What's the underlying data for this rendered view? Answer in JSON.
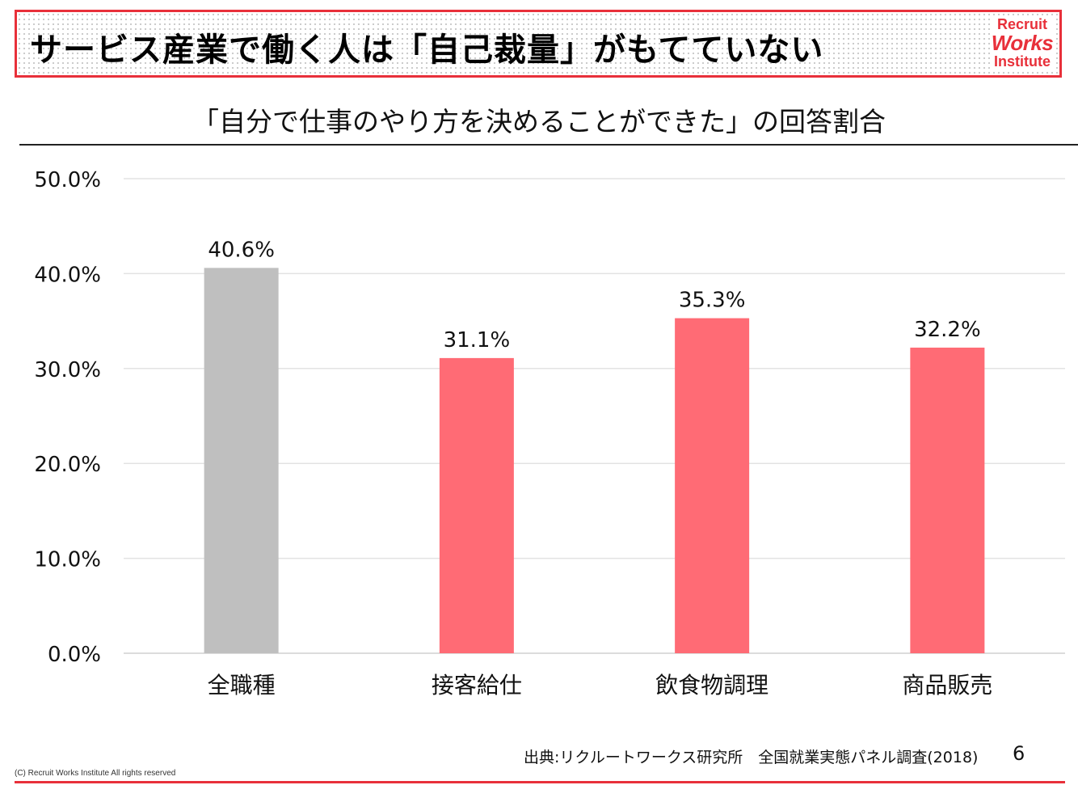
{
  "header": {
    "title": "サービス産業で働く人は「自己裁量」がもてていない",
    "logo": {
      "line1": "Recruit",
      "line2": "Works",
      "line3": "Institute"
    }
  },
  "chart_data": {
    "type": "bar",
    "title": "「自分で仕事のやり方を決めることができた」の回答割合",
    "categories": [
      "全職種",
      "接客給仕",
      "飲食物調理",
      "商品販売"
    ],
    "values": [
      40.6,
      31.1,
      35.3,
      32.2
    ],
    "value_labels": [
      "40.6%",
      "31.1%",
      "35.3%",
      "32.2%"
    ],
    "bar_colors": [
      "#bfbfbf",
      "#ff6b75",
      "#ff6b75",
      "#ff6b75"
    ],
    "yticks": [
      0,
      10,
      20,
      30,
      40,
      50
    ],
    "ytick_labels": [
      "0.0%",
      "10.0%",
      "20.0%",
      "30.0%",
      "40.0%",
      "50.0%"
    ],
    "ylim": [
      0,
      50
    ],
    "xlabel": "",
    "ylabel": "",
    "grid": true
  },
  "footer": {
    "source": "出典:リクルートワークス研究所　全国就業実態パネル調査(2018)",
    "page": "6",
    "copyright": "(C) Recruit Works Institute All rights reserved"
  },
  "colors": {
    "accent": "#e8303a",
    "grid": "#e3e3e3"
  }
}
